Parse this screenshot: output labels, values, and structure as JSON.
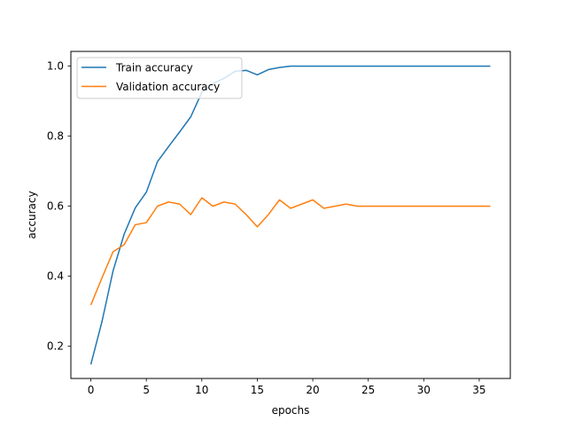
{
  "chart_data": {
    "type": "line",
    "title": "",
    "xlabel": "epochs",
    "ylabel": "accuracy",
    "xlim": [
      -1.8,
      37.8
    ],
    "ylim": [
      0.108,
      1.042
    ],
    "xticks": [
      0,
      5,
      10,
      15,
      20,
      25,
      30,
      35
    ],
    "xtick_labels": [
      "0",
      "5",
      "10",
      "15",
      "20",
      "25",
      "30",
      "35"
    ],
    "yticks": [
      0.2,
      0.4,
      0.6,
      0.8,
      1.0
    ],
    "ytick_labels": [
      "0.2",
      "0.4",
      "0.6",
      "0.8",
      "1.0"
    ],
    "grid": false,
    "legend_position": "top-left",
    "x": [
      0,
      1,
      2,
      3,
      4,
      5,
      6,
      7,
      8,
      9,
      10,
      11,
      12,
      13,
      14,
      15,
      16,
      17,
      18,
      19,
      20,
      21,
      22,
      23,
      24,
      25,
      26,
      27,
      28,
      29,
      30,
      31,
      32,
      33,
      34,
      35,
      36
    ],
    "series": [
      {
        "name": "Train accuracy",
        "color": "#1f77b4",
        "values": [
          0.148,
          0.27,
          0.415,
          0.52,
          0.595,
          0.64,
          0.727,
          0.77,
          0.812,
          0.855,
          0.925,
          0.95,
          0.965,
          0.985,
          0.988,
          0.975,
          0.99,
          0.996,
          1.0,
          1.0,
          1.0,
          1.0,
          1.0,
          1.0,
          1.0,
          1.0,
          1.0,
          1.0,
          1.0,
          1.0,
          1.0,
          1.0,
          1.0,
          1.0,
          1.0,
          1.0,
          1.0
        ]
      },
      {
        "name": "Validation accuracy",
        "color": "#ff7f0e",
        "values": [
          0.318,
          0.395,
          0.47,
          0.49,
          0.547,
          0.553,
          0.6,
          0.612,
          0.606,
          0.576,
          0.624,
          0.6,
          0.612,
          0.606,
          0.576,
          0.541,
          0.576,
          0.618,
          0.594,
          0.606,
          0.618,
          0.594,
          0.6,
          0.606,
          0.6,
          0.6,
          0.6,
          0.6,
          0.6,
          0.6,
          0.6,
          0.6,
          0.6,
          0.6,
          0.6,
          0.6,
          0.6
        ]
      }
    ]
  }
}
